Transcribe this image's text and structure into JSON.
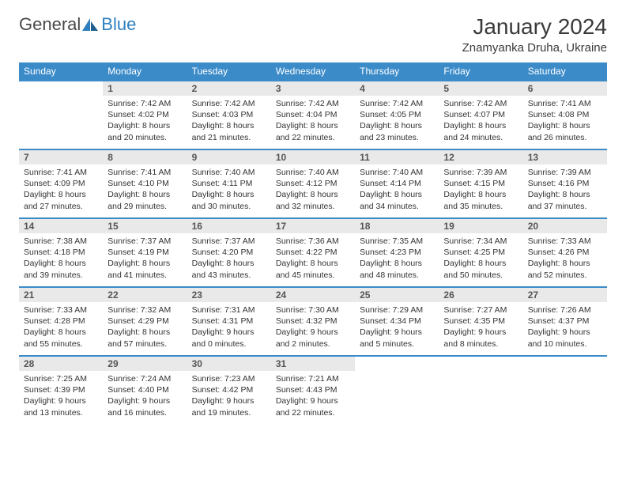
{
  "brand": {
    "part1": "General",
    "part2": "Blue"
  },
  "title": "January 2024",
  "location": "Znamyanka Druha, Ukraine",
  "colors": {
    "header_bg": "#3b8bc9",
    "header_text": "#ffffff",
    "daynum_bg": "#e9e9e9",
    "border": "#3b8bc9",
    "text": "#333333",
    "brand_blue": "#2f7fbf"
  },
  "weekdays": [
    "Sunday",
    "Monday",
    "Tuesday",
    "Wednesday",
    "Thursday",
    "Friday",
    "Saturday"
  ],
  "weeks": [
    {
      "nums": [
        "",
        "1",
        "2",
        "3",
        "4",
        "5",
        "6"
      ],
      "cells": [
        "",
        "Sunrise: 7:42 AM\nSunset: 4:02 PM\nDaylight: 8 hours and 20 minutes.",
        "Sunrise: 7:42 AM\nSunset: 4:03 PM\nDaylight: 8 hours and 21 minutes.",
        "Sunrise: 7:42 AM\nSunset: 4:04 PM\nDaylight: 8 hours and 22 minutes.",
        "Sunrise: 7:42 AM\nSunset: 4:05 PM\nDaylight: 8 hours and 23 minutes.",
        "Sunrise: 7:42 AM\nSunset: 4:07 PM\nDaylight: 8 hours and 24 minutes.",
        "Sunrise: 7:41 AM\nSunset: 4:08 PM\nDaylight: 8 hours and 26 minutes."
      ]
    },
    {
      "nums": [
        "7",
        "8",
        "9",
        "10",
        "11",
        "12",
        "13"
      ],
      "cells": [
        "Sunrise: 7:41 AM\nSunset: 4:09 PM\nDaylight: 8 hours and 27 minutes.",
        "Sunrise: 7:41 AM\nSunset: 4:10 PM\nDaylight: 8 hours and 29 minutes.",
        "Sunrise: 7:40 AM\nSunset: 4:11 PM\nDaylight: 8 hours and 30 minutes.",
        "Sunrise: 7:40 AM\nSunset: 4:12 PM\nDaylight: 8 hours and 32 minutes.",
        "Sunrise: 7:40 AM\nSunset: 4:14 PM\nDaylight: 8 hours and 34 minutes.",
        "Sunrise: 7:39 AM\nSunset: 4:15 PM\nDaylight: 8 hours and 35 minutes.",
        "Sunrise: 7:39 AM\nSunset: 4:16 PM\nDaylight: 8 hours and 37 minutes."
      ]
    },
    {
      "nums": [
        "14",
        "15",
        "16",
        "17",
        "18",
        "19",
        "20"
      ],
      "cells": [
        "Sunrise: 7:38 AM\nSunset: 4:18 PM\nDaylight: 8 hours and 39 minutes.",
        "Sunrise: 7:37 AM\nSunset: 4:19 PM\nDaylight: 8 hours and 41 minutes.",
        "Sunrise: 7:37 AM\nSunset: 4:20 PM\nDaylight: 8 hours and 43 minutes.",
        "Sunrise: 7:36 AM\nSunset: 4:22 PM\nDaylight: 8 hours and 45 minutes.",
        "Sunrise: 7:35 AM\nSunset: 4:23 PM\nDaylight: 8 hours and 48 minutes.",
        "Sunrise: 7:34 AM\nSunset: 4:25 PM\nDaylight: 8 hours and 50 minutes.",
        "Sunrise: 7:33 AM\nSunset: 4:26 PM\nDaylight: 8 hours and 52 minutes."
      ]
    },
    {
      "nums": [
        "21",
        "22",
        "23",
        "24",
        "25",
        "26",
        "27"
      ],
      "cells": [
        "Sunrise: 7:33 AM\nSunset: 4:28 PM\nDaylight: 8 hours and 55 minutes.",
        "Sunrise: 7:32 AM\nSunset: 4:29 PM\nDaylight: 8 hours and 57 minutes.",
        "Sunrise: 7:31 AM\nSunset: 4:31 PM\nDaylight: 9 hours and 0 minutes.",
        "Sunrise: 7:30 AM\nSunset: 4:32 PM\nDaylight: 9 hours and 2 minutes.",
        "Sunrise: 7:29 AM\nSunset: 4:34 PM\nDaylight: 9 hours and 5 minutes.",
        "Sunrise: 7:27 AM\nSunset: 4:35 PM\nDaylight: 9 hours and 8 minutes.",
        "Sunrise: 7:26 AM\nSunset: 4:37 PM\nDaylight: 9 hours and 10 minutes."
      ]
    },
    {
      "nums": [
        "28",
        "29",
        "30",
        "31",
        "",
        "",
        ""
      ],
      "cells": [
        "Sunrise: 7:25 AM\nSunset: 4:39 PM\nDaylight: 9 hours and 13 minutes.",
        "Sunrise: 7:24 AM\nSunset: 4:40 PM\nDaylight: 9 hours and 16 minutes.",
        "Sunrise: 7:23 AM\nSunset: 4:42 PM\nDaylight: 9 hours and 19 minutes.",
        "Sunrise: 7:21 AM\nSunset: 4:43 PM\nDaylight: 9 hours and 22 minutes.",
        "",
        "",
        ""
      ]
    }
  ]
}
